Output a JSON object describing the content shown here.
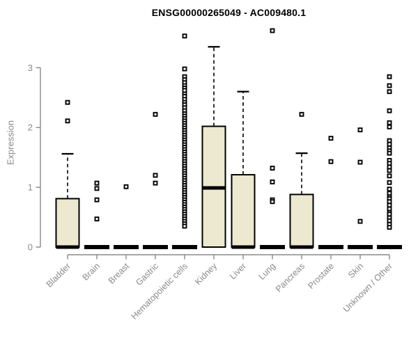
{
  "chart_data": {
    "type": "boxplot",
    "title": "ENSG00000265049 - AC009480.1",
    "ylabel": "Expression",
    "yticks": [
      0,
      1,
      2,
      3
    ],
    "ylim": [
      0,
      3.7
    ],
    "grid": false,
    "legend": "none",
    "colors": {
      "box_fill": "#ede8d0",
      "box_border": "#000000",
      "median": "#000000",
      "whisker": "#000000",
      "outlier": "#000000",
      "axis": "#888888",
      "tick_label": "#8a8a8a",
      "title": "#000000",
      "background": "#ffffff"
    },
    "categories": [
      "Bladder",
      "Brain",
      "Breast",
      "Gastric",
      "Hematopoietic cells",
      "Kidney",
      "Liver",
      "Lung",
      "Pancreas",
      "Prostate",
      "Skin",
      "Unknown / Other"
    ],
    "boxes": [
      {
        "category": "Bladder",
        "q1": 0,
        "median": 0,
        "q3": 0.81,
        "whisker_low": 0,
        "whisker_high": 1.56,
        "outliers": [
          2.42,
          2.11
        ]
      },
      {
        "category": "Brain",
        "q1": 0,
        "median": 0,
        "q3": 0,
        "whisker_low": 0,
        "whisker_high": 0,
        "outliers": [
          1.07,
          0.98,
          0.79,
          0.47
        ]
      },
      {
        "category": "Breast",
        "q1": 0,
        "median": 0,
        "q3": 0,
        "whisker_low": 0,
        "whisker_high": 0,
        "outliers": [
          1.01
        ]
      },
      {
        "category": "Gastric",
        "q1": 0,
        "median": 0,
        "q3": 0,
        "whisker_low": 0,
        "whisker_high": 0,
        "outliers": [
          2.22,
          1.2,
          1.07
        ]
      },
      {
        "category": "Hematopoietic cells",
        "q1": 0,
        "median": 0,
        "q3": 0,
        "whisker_low": 0,
        "whisker_high": 0,
        "outliers": [
          3.53,
          2.98,
          2.85,
          2.8,
          2.75,
          2.7,
          2.66,
          2.62,
          2.56,
          2.52,
          2.47,
          2.42,
          2.38,
          2.33,
          2.28,
          2.23,
          2.19,
          2.15,
          2.11,
          2.07,
          2.03,
          1.99,
          1.95,
          1.91,
          1.87,
          1.83,
          1.79,
          1.75,
          1.71,
          1.67,
          1.63,
          1.59,
          1.55,
          1.51,
          1.47,
          1.43,
          1.39,
          1.35,
          1.31,
          1.27,
          1.23,
          1.19,
          1.15,
          1.11,
          1.07,
          1.03,
          0.99,
          0.95,
          0.91,
          0.87,
          0.83,
          0.79,
          0.75,
          0.71,
          0.67,
          0.63,
          0.59,
          0.55,
          0.51,
          0.47,
          0.43,
          0.39,
          0.35
        ]
      },
      {
        "category": "Kidney",
        "q1": 0,
        "median": 0.99,
        "q3": 2.02,
        "whisker_low": 0,
        "whisker_high": 3.35,
        "outliers": []
      },
      {
        "category": "Liver",
        "q1": 0,
        "median": 0,
        "q3": 1.21,
        "whisker_low": 0,
        "whisker_high": 2.6,
        "outliers": []
      },
      {
        "category": "Lung",
        "q1": 0,
        "median": 0,
        "q3": 0,
        "whisker_low": 0,
        "whisker_high": 0,
        "outliers": [
          3.62,
          1.32,
          1.09,
          0.79,
          0.76
        ]
      },
      {
        "category": "Pancreas",
        "q1": 0,
        "median": 0,
        "q3": 0.88,
        "whisker_low": 0,
        "whisker_high": 1.57,
        "outliers": [
          2.22
        ]
      },
      {
        "category": "Prostate",
        "q1": 0,
        "median": 0,
        "q3": 0,
        "whisker_low": 0,
        "whisker_high": 0,
        "outliers": [
          1.82,
          1.43
        ]
      },
      {
        "category": "Skin",
        "q1": 0,
        "median": 0,
        "q3": 0,
        "whisker_low": 0,
        "whisker_high": 0,
        "outliers": [
          1.96,
          1.42,
          0.43
        ]
      },
      {
        "category": "Unknown / Other",
        "q1": 0,
        "median": 0,
        "q3": 0,
        "whisker_low": 0,
        "whisker_high": 0,
        "outliers": [
          2.85,
          2.7,
          2.6,
          2.28,
          2.08,
          2.01,
          1.78,
          1.72,
          1.66,
          1.61,
          1.57,
          1.45,
          1.4,
          1.34,
          1.28,
          1.19,
          1.08,
          0.97,
          0.9,
          0.84,
          0.81,
          0.76,
          0.7,
          0.64,
          0.58,
          0.55,
          0.49,
          0.44,
          0.38,
          0.33
        ]
      }
    ]
  }
}
